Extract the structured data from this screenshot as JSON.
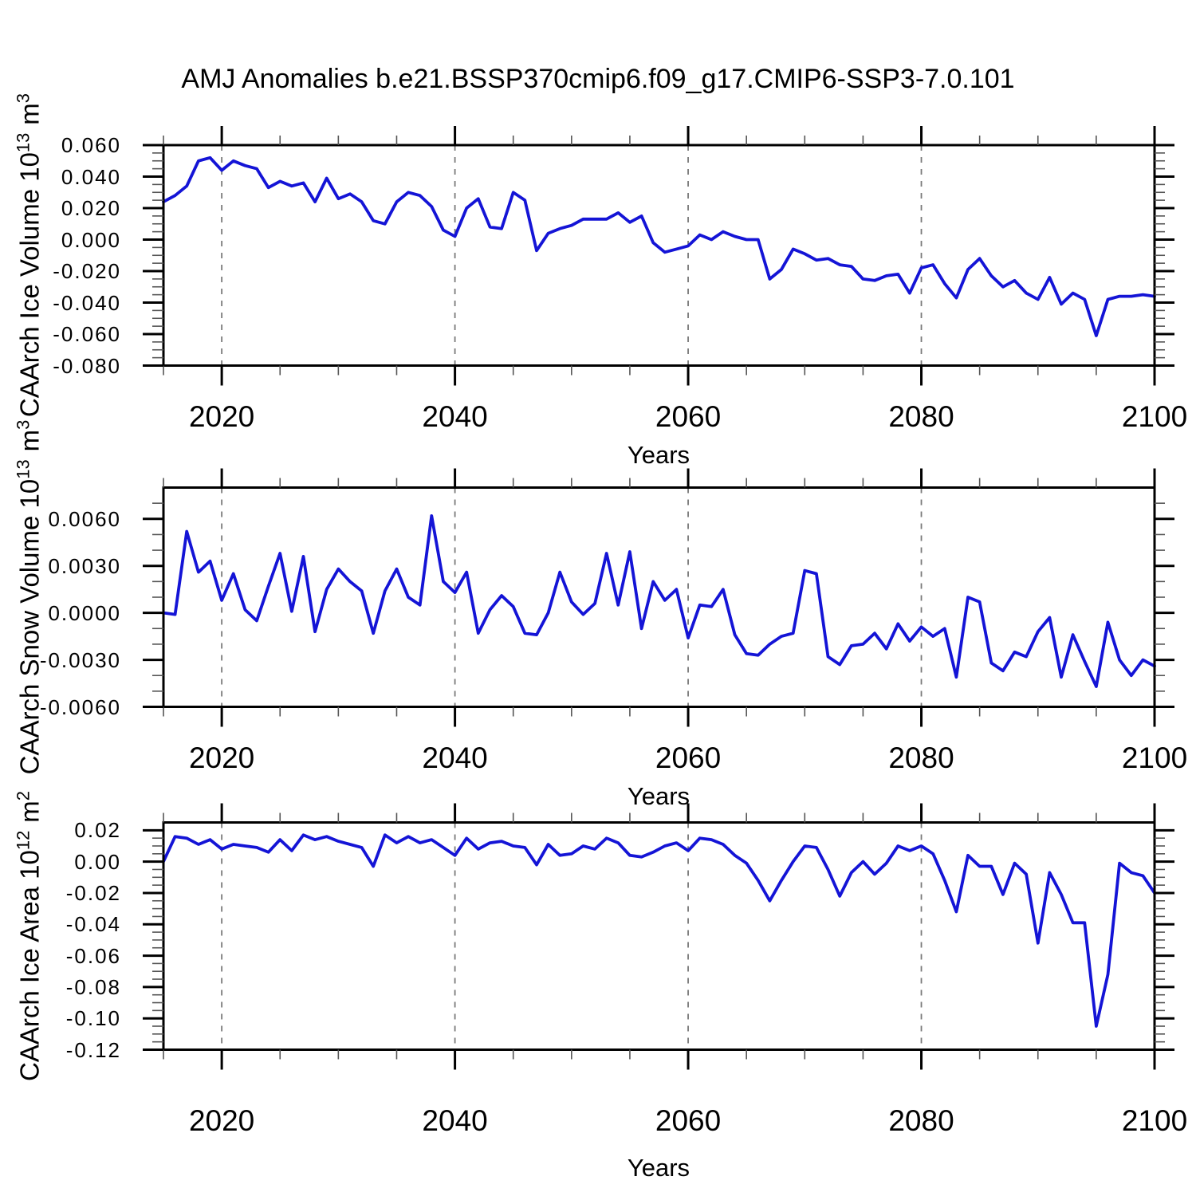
{
  "title": "AMJ Anomalies b.e21.BSSP370cmip6.f09_g17.CMIP6-SSP3-7.0.101",
  "x_axis": {
    "label": "Years",
    "lim": [
      2015,
      2100
    ],
    "major_ticks": [
      2020,
      2040,
      2060,
      2080,
      2100
    ],
    "tick_labels": [
      "2020",
      "2040",
      "2060",
      "2080",
      "2100"
    ],
    "minor_step": 5,
    "gridlines": [
      2020,
      2040,
      2060,
      2080
    ]
  },
  "styles": {
    "line_color": "#1414d6",
    "grid_color": "#7a7a7a",
    "axis_color": "#000000",
    "minor_tick_color": "#555555",
    "background": "#ffffff"
  },
  "chart_data": [
    {
      "type": "line",
      "name": "caarch-ice-volume",
      "ylabel": {
        "base": "CAArch Ice Volume 10",
        "exp": "13",
        "unit": "m",
        "unit_exp": "3"
      },
      "ylabel_plain": "CAArch Ice Volume 10^13 m^3",
      "ylim": [
        -0.08,
        0.06
      ],
      "y_ticks": {
        "labels": [
          "0.060",
          "0.040",
          "0.020",
          "0.000",
          "-0.020",
          "-0.040",
          "-0.060",
          "-0.080"
        ],
        "values": [
          0.06,
          0.04,
          0.02,
          0.0,
          -0.02,
          -0.04,
          -0.06,
          -0.08
        ]
      },
      "y_minor_step": 0.005,
      "x_start": 2015,
      "x_step": 1,
      "values": [
        0.024,
        0.028,
        0.034,
        0.05,
        0.052,
        0.044,
        0.05,
        0.047,
        0.045,
        0.033,
        0.037,
        0.034,
        0.036,
        0.024,
        0.039,
        0.026,
        0.029,
        0.024,
        0.012,
        0.01,
        0.024,
        0.03,
        0.028,
        0.021,
        0.006,
        0.002,
        0.02,
        0.026,
        0.008,
        0.007,
        0.03,
        0.025,
        -0.007,
        0.004,
        0.007,
        0.009,
        0.013,
        0.013,
        0.013,
        0.017,
        0.011,
        0.015,
        -0.002,
        -0.008,
        -0.006,
        -0.004,
        0.003,
        0.0,
        0.005,
        0.002,
        0.0,
        0.0,
        -0.025,
        -0.019,
        -0.006,
        -0.009,
        -0.013,
        -0.012,
        -0.016,
        -0.017,
        -0.025,
        -0.026,
        -0.023,
        -0.022,
        -0.034,
        -0.018,
        -0.016,
        -0.028,
        -0.037,
        -0.019,
        -0.012,
        -0.023,
        -0.03,
        -0.026,
        -0.034,
        -0.038,
        -0.024,
        -0.041,
        -0.034,
        -0.038,
        -0.061,
        -0.038,
        -0.036,
        -0.036,
        -0.035,
        -0.036
      ]
    },
    {
      "type": "line",
      "name": "caarch-snow-volume",
      "ylabel": {
        "base": "CAArch Snow Volume 10",
        "exp": "13",
        "unit": "m",
        "unit_exp": "3"
      },
      "ylabel_plain": "CAArch Snow Volume 10^13 m^3",
      "ylim": [
        -0.006,
        0.008
      ],
      "y_ticks": {
        "labels": [
          "0.0060",
          "0.0030",
          "0.0000",
          "-0.0030",
          "-0.0060"
        ],
        "values": [
          0.006,
          0.003,
          0.0,
          -0.003,
          -0.006
        ]
      },
      "y_minor_step": 0.001,
      "x_start": 2015,
      "x_step": 1,
      "values": [
        0.0,
        -0.0001,
        0.0052,
        0.0026,
        0.0033,
        0.0008,
        0.0025,
        0.0002,
        -0.0005,
        0.0017,
        0.0038,
        0.0001,
        0.0036,
        -0.0012,
        0.0015,
        0.0028,
        0.002,
        0.0014,
        -0.0013,
        0.0014,
        0.0028,
        0.001,
        0.0005,
        0.0062,
        0.002,
        0.0013,
        0.0026,
        -0.0013,
        0.0002,
        0.0011,
        0.0004,
        -0.0013,
        -0.0014,
        0.0,
        0.0026,
        0.0007,
        -0.0001,
        0.0006,
        0.0038,
        0.0005,
        0.0039,
        -0.001,
        0.002,
        0.0008,
        0.0015,
        -0.0016,
        0.0005,
        0.0004,
        0.0015,
        -0.0014,
        -0.0026,
        -0.0027,
        -0.002,
        -0.0015,
        -0.0013,
        0.0027,
        0.0025,
        -0.0028,
        -0.0033,
        -0.0021,
        -0.002,
        -0.0013,
        -0.0023,
        -0.0007,
        -0.0018,
        -0.0009,
        -0.0015,
        -0.001,
        -0.0041,
        0.001,
        0.0007,
        -0.0032,
        -0.0037,
        -0.0025,
        -0.0028,
        -0.0012,
        -0.0003,
        -0.0041,
        -0.0014,
        -0.0031,
        -0.0047,
        -0.0006,
        -0.003,
        -0.004,
        -0.003,
        -0.0034
      ]
    },
    {
      "type": "line",
      "name": "caarch-ice-area",
      "ylabel": {
        "base": "CAArch Ice Area 10",
        "exp": "12",
        "unit": "m",
        "unit_exp": "2"
      },
      "ylabel_plain": "CAArch Ice Area 10^12 m^2",
      "ylim": [
        -0.12,
        0.025
      ],
      "y_ticks": {
        "labels": [
          "0.02",
          "0.00",
          "-0.02",
          "-0.04",
          "-0.06",
          "-0.08",
          "-0.10",
          "-0.12"
        ],
        "values": [
          0.02,
          0.0,
          -0.02,
          -0.04,
          -0.06,
          -0.08,
          -0.1,
          -0.12
        ]
      },
      "y_minor_step": 0.005,
      "x_start": 2015,
      "x_step": 1,
      "values": [
        0.0,
        0.016,
        0.015,
        0.011,
        0.014,
        0.008,
        0.011,
        0.01,
        0.009,
        0.006,
        0.014,
        0.007,
        0.017,
        0.014,
        0.016,
        0.013,
        0.011,
        0.009,
        -0.003,
        0.017,
        0.012,
        0.016,
        0.012,
        0.014,
        0.009,
        0.004,
        0.015,
        0.008,
        0.012,
        0.013,
        0.01,
        0.009,
        -0.002,
        0.011,
        0.004,
        0.005,
        0.01,
        0.008,
        0.015,
        0.012,
        0.004,
        0.003,
        0.006,
        0.01,
        0.012,
        0.007,
        0.015,
        0.014,
        0.011,
        0.004,
        -0.001,
        -0.012,
        -0.025,
        -0.012,
        0.0,
        0.01,
        0.009,
        -0.005,
        -0.022,
        -0.007,
        0.0,
        -0.008,
        -0.001,
        0.01,
        0.007,
        0.01,
        0.005,
        -0.012,
        -0.032,
        0.004,
        -0.003,
        -0.003,
        -0.021,
        -0.001,
        -0.008,
        -0.052,
        -0.007,
        -0.021,
        -0.039,
        -0.039,
        -0.105,
        -0.072,
        -0.001,
        -0.007,
        -0.009,
        -0.02
      ]
    }
  ]
}
